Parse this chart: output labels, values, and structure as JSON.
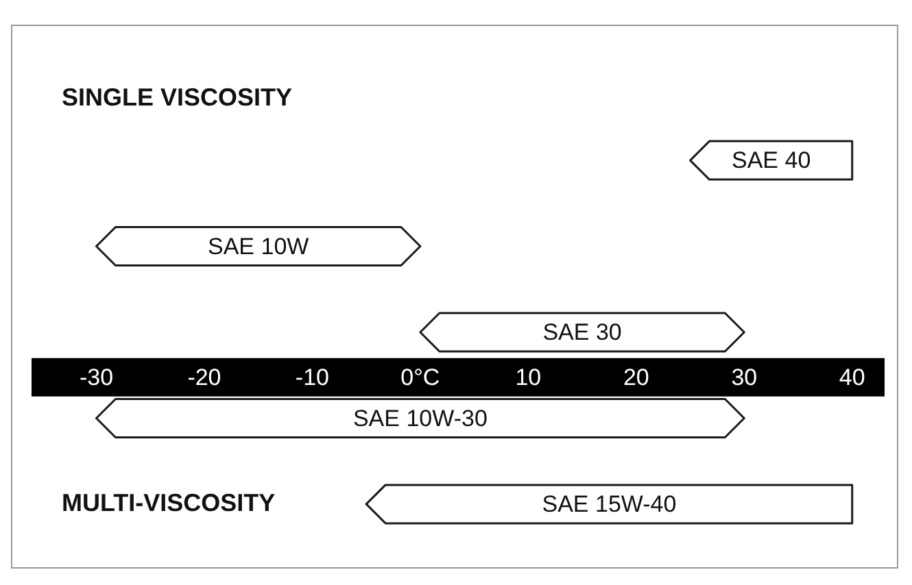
{
  "chart_data": {
    "type": "bar",
    "orientation": "horizontal",
    "categories": [
      "SAE 40",
      "SAE 10W",
      "SAE 30",
      "SAE 10W-30",
      "SAE 15W-40"
    ],
    "series": [
      {
        "color": "#ffffff",
        "base": [
          25,
          -30,
          0,
          -30,
          -5
        ],
        "values": [
          15,
          30,
          30,
          60,
          45
        ]
      }
    ],
    "xlim": [
      -36,
      43
    ],
    "xticks": [
      {
        "value": -30,
        "label": "-30"
      },
      {
        "value": -20,
        "label": "-20"
      },
      {
        "value": -10,
        "label": "-10"
      },
      {
        "value": 0,
        "label": "0°C"
      },
      {
        "value": 10,
        "label": "10"
      },
      {
        "value": 20,
        "label": "20"
      },
      {
        "value": 30,
        "label": "30"
      },
      {
        "value": 40,
        "label": "40"
      }
    ],
    "annotations": [
      "SINGLE VISCOSITY",
      "MULTI-VISCOSITY"
    ]
  }
}
